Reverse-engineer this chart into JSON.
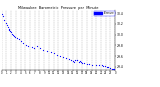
{
  "title": "Milwaukee  Barometric  Pressure  per  Minute",
  "bg_color": "#ffffff",
  "plot_bg_color": "#ffffff",
  "dot_color": "#0000ff",
  "dot_size": 0.8,
  "legend_color": "#0000ff",
  "grid_color": "#aaaaaa",
  "tick_color": "#000000",
  "ylim": [
    29.35,
    30.45
  ],
  "xlim": [
    0,
    1440
  ],
  "yticks": [
    29.4,
    29.6,
    29.8,
    30.0,
    30.2,
    30.4
  ],
  "ytick_labels": [
    "29.4",
    "29.6",
    "29.8",
    "30.0",
    "30.2",
    "30.4"
  ],
  "xticks": [
    0,
    60,
    120,
    180,
    240,
    300,
    360,
    420,
    480,
    540,
    600,
    660,
    720,
    780,
    840,
    900,
    960,
    1020,
    1080,
    1140,
    1200,
    1260,
    1320,
    1380,
    1440
  ],
  "xtick_labels": [
    "0",
    "1",
    "2",
    "3",
    "4",
    "5",
    "6",
    "7",
    "8",
    "9",
    "10",
    "11",
    "12",
    "13",
    "14",
    "15",
    "16",
    "17",
    "18",
    "19",
    "20",
    "21",
    "22",
    "23",
    "0"
  ],
  "x_data": [
    2,
    20,
    35,
    50,
    65,
    75,
    90,
    100,
    110,
    125,
    135,
    145,
    160,
    175,
    195,
    215,
    240,
    270,
    305,
    340,
    380,
    415,
    450,
    490,
    530,
    570,
    620,
    660,
    700,
    740,
    780,
    820,
    855,
    880,
    905,
    920,
    935,
    950,
    960,
    975,
    990,
    1005,
    1020,
    1050,
    1080,
    1110,
    1150,
    1200,
    1240,
    1270,
    1290,
    1310,
    1330,
    1355,
    1380,
    1400,
    1415,
    1430
  ],
  "y_data": [
    30.38,
    30.35,
    30.28,
    30.22,
    30.18,
    30.14,
    30.1,
    30.08,
    30.06,
    30.04,
    30.02,
    30.0,
    29.97,
    29.95,
    29.93,
    29.91,
    29.88,
    29.84,
    29.8,
    29.78,
    29.77,
    29.76,
    29.78,
    29.75,
    29.72,
    29.7,
    29.67,
    29.65,
    29.62,
    29.6,
    29.58,
    29.56,
    29.54,
    29.52,
    29.51,
    29.5,
    29.52,
    29.53,
    29.52,
    29.5,
    29.51,
    29.49,
    29.48,
    29.47,
    29.46,
    29.45,
    29.44,
    29.43,
    29.44,
    29.43,
    29.42,
    29.41,
    29.4,
    29.39,
    29.38,
    29.37,
    29.37,
    29.36
  ]
}
